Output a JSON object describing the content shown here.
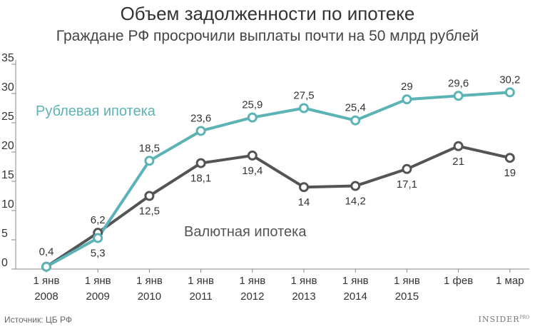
{
  "title": "Объем задолженности по ипотеке",
  "subtitle": "Граждане РФ просрочили выплаты почти на 50 млрд рублей",
  "source": "Источник: ЦБ РФ",
  "logo": {
    "main": "INSIDER",
    "sup": "PRO"
  },
  "colors": {
    "ruble": "#5bb3b5",
    "currency": "#545454",
    "axis": "#888888",
    "text": "#333333"
  },
  "chart_data": {
    "type": "line",
    "x": [
      [
        "1 янв",
        "2008"
      ],
      [
        "1 янв",
        "2009"
      ],
      [
        "1 янв",
        "2010"
      ],
      [
        "1 янв",
        "2011"
      ],
      [
        "1 янв",
        "2012"
      ],
      [
        "1 янв",
        "2013"
      ],
      [
        "1 янв",
        "2014"
      ],
      [
        "1 янв",
        "2015"
      ],
      [
        "1 фев",
        ""
      ],
      [
        "1 мар",
        ""
      ]
    ],
    "ylim": [
      0,
      35
    ],
    "yticks": [
      0,
      5,
      10,
      15,
      20,
      25,
      30,
      35
    ],
    "grid": false,
    "series": [
      {
        "name": "Рублевая ипотека",
        "color": "#5bb3b5",
        "values": [
          0.4,
          5.3,
          18.5,
          23.6,
          25.9,
          27.5,
          25.4,
          29,
          29.6,
          30.2
        ],
        "labels": [
          "0,4",
          "5,3",
          "18,5",
          "23,6",
          "25,9",
          "27,5",
          "25,4",
          "29",
          "29,6",
          "30,2"
        ]
      },
      {
        "name": "Валютная ипотека",
        "color": "#545454",
        "values": [
          0.4,
          6.2,
          12.5,
          18.1,
          19.4,
          14,
          14.2,
          17.1,
          21,
          19
        ],
        "labels": [
          "",
          "6,2",
          "12,5",
          "18,1",
          "19,4",
          "14",
          "14,2",
          "17,1",
          "21",
          "19"
        ]
      }
    ]
  }
}
